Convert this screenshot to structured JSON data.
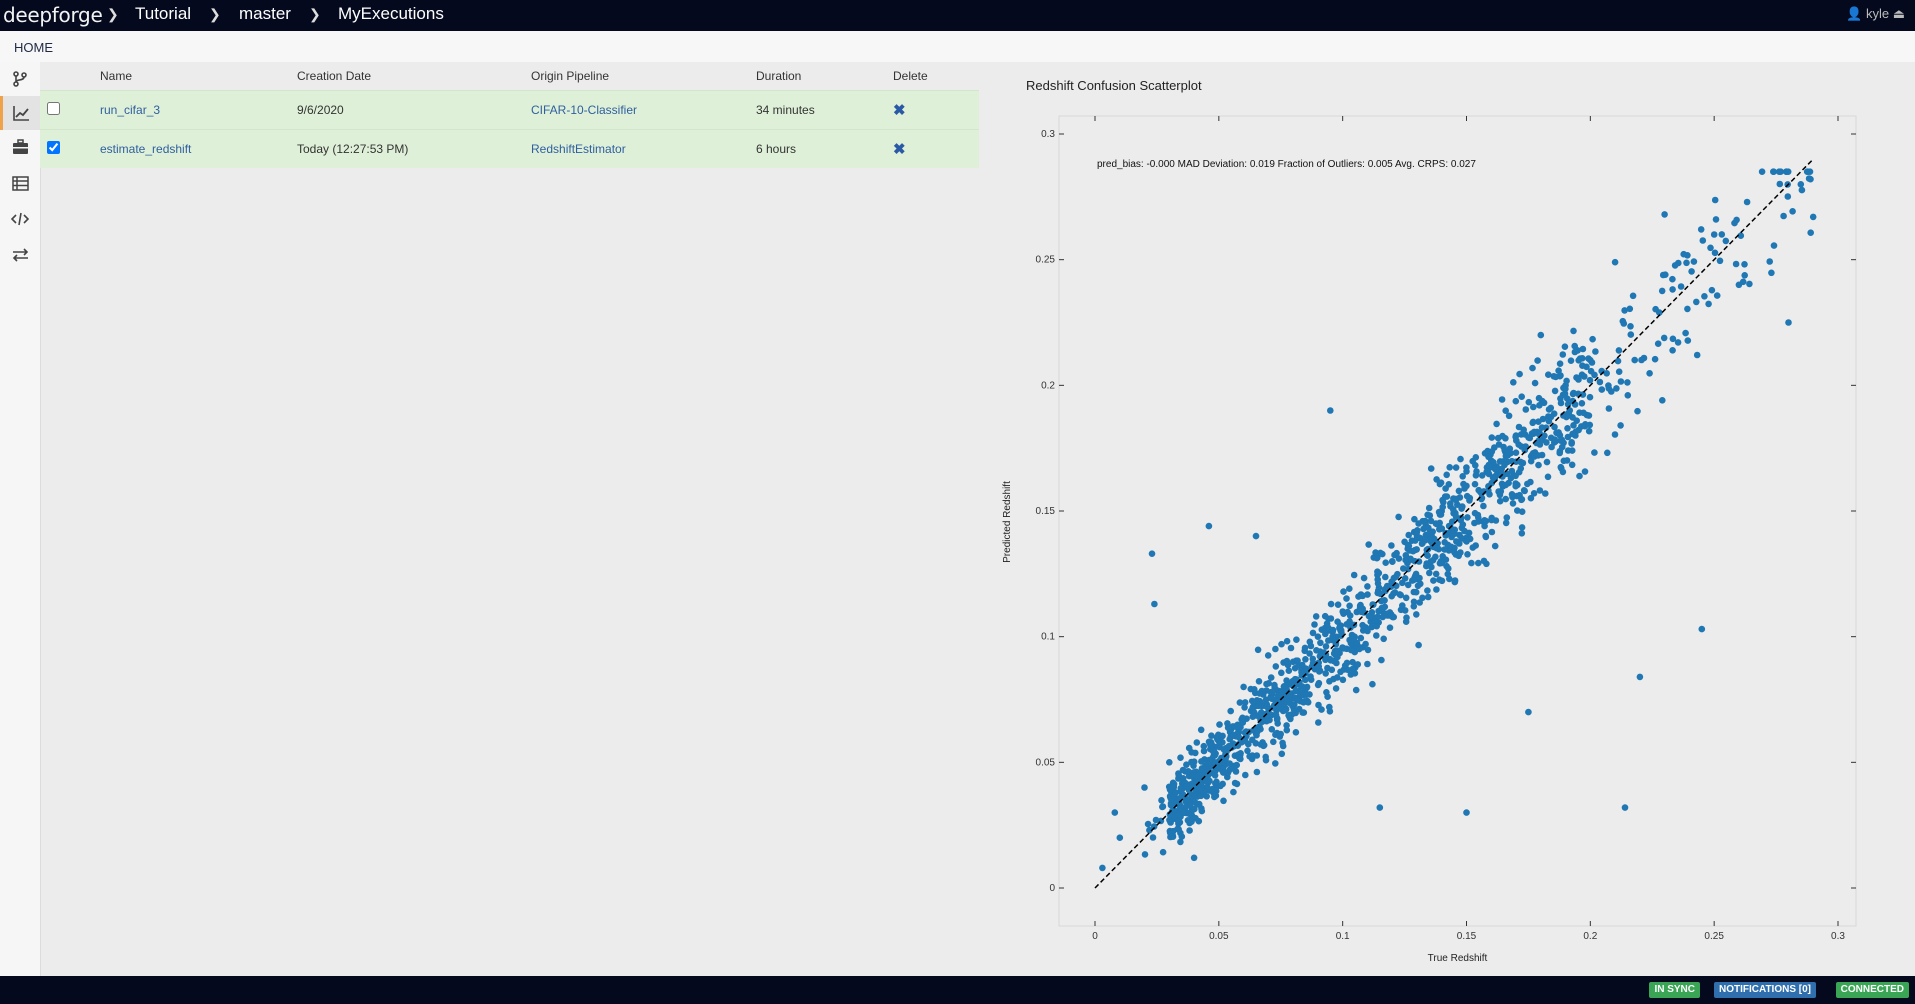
{
  "header": {
    "brand": "deepforge",
    "breadcrumbs": [
      "Tutorial",
      "master",
      "MyExecutions"
    ],
    "user": "kyle"
  },
  "home_link": "HOME",
  "sidebar": {
    "items": [
      {
        "icon": "branch-icon"
      },
      {
        "icon": "chart-line-icon",
        "active": true
      },
      {
        "icon": "briefcase-icon"
      },
      {
        "icon": "list-icon"
      },
      {
        "icon": "code-icon"
      },
      {
        "icon": "exchange-icon"
      }
    ]
  },
  "table": {
    "columns": [
      "Name",
      "Creation Date",
      "Origin Pipeline",
      "Duration",
      "Delete"
    ],
    "rows": [
      {
        "checked": false,
        "name": "run_cifar_3",
        "date": "9/6/2020",
        "pipeline": "CIFAR-10-Classifier",
        "duration": "34 minutes",
        "delete": "✖"
      },
      {
        "checked": true,
        "name": "estimate_redshift",
        "date": "Today (12:27:53 PM)",
        "pipeline": "RedshiftEstimator",
        "duration": "6 hours",
        "delete": "✖"
      }
    ]
  },
  "chart_data": {
    "type": "scatter",
    "title": "Redshift Confusion Scatterplot",
    "annotation": "pred_bias: -0.000 MAD Deviation: 0.019 Fraction of Outliers: 0.005 Avg. CRPS: 0.027",
    "xlabel": "True Redshift",
    "ylabel": "Predicted Redshift",
    "xlim": [
      0,
      0.3
    ],
    "ylim": [
      0,
      0.3
    ],
    "xticks": [
      "0",
      "0.05",
      "0.1",
      "0.15",
      "0.2",
      "0.25",
      "0.3"
    ],
    "yticks": [
      "0",
      "0.05",
      "0.1",
      "0.15",
      "0.2",
      "0.25",
      "0.3"
    ],
    "reference_line": {
      "style": "dashed",
      "color": "#000000",
      "from": [
        0,
        0
      ],
      "to": [
        0.29,
        0.29
      ]
    },
    "marker_color": "#1f77b4",
    "point_count_approx": 1400,
    "points_sample": [
      [
        0.003,
        0.008
      ],
      [
        0.008,
        0.03
      ],
      [
        0.01,
        0.02
      ],
      [
        0.02,
        0.04
      ],
      [
        0.023,
        0.133
      ],
      [
        0.024,
        0.113
      ],
      [
        0.03,
        0.05
      ],
      [
        0.04,
        0.012
      ],
      [
        0.046,
        0.144
      ],
      [
        0.05,
        0.06
      ],
      [
        0.06,
        0.08
      ],
      [
        0.065,
        0.14
      ],
      [
        0.07,
        0.07
      ],
      [
        0.08,
        0.09
      ],
      [
        0.09,
        0.1
      ],
      [
        0.095,
        0.19
      ],
      [
        0.1,
        0.11
      ],
      [
        0.11,
        0.12
      ],
      [
        0.115,
        0.032
      ],
      [
        0.12,
        0.13
      ],
      [
        0.13,
        0.14
      ],
      [
        0.14,
        0.15
      ],
      [
        0.15,
        0.03
      ],
      [
        0.15,
        0.16
      ],
      [
        0.16,
        0.17
      ],
      [
        0.17,
        0.18
      ],
      [
        0.175,
        0.07
      ],
      [
        0.18,
        0.22
      ],
      [
        0.19,
        0.2
      ],
      [
        0.2,
        0.21
      ],
      [
        0.21,
        0.249
      ],
      [
        0.214,
        0.032
      ],
      [
        0.22,
        0.084
      ],
      [
        0.23,
        0.268
      ],
      [
        0.245,
        0.103
      ],
      [
        0.25,
        0.26
      ],
      [
        0.26,
        0.24
      ],
      [
        0.28,
        0.225
      ],
      [
        0.285,
        0.28
      ],
      [
        0.29,
        0.267
      ]
    ]
  },
  "status": {
    "sync": "IN SYNC",
    "notifications": "NOTIFICATIONS [0]",
    "connection": "CONNECTED",
    "colors": {
      "sync": "#3aa655",
      "notifications": "#2f6fae",
      "connection": "#3aa655"
    }
  }
}
